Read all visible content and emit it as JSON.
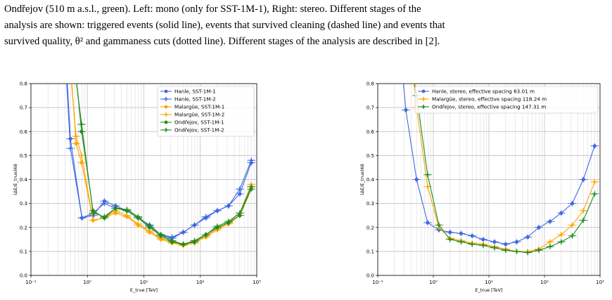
{
  "caption": {
    "line1": "Ondřejov (510 m a.s.l., green). Left: mono (only for SST-1M-1), Right: stereo. Different stages of the",
    "line2": "analysis are shown: triggered events (solid line), events that survived cleaning (dashed line) and events that",
    "line3": "survived quality, θ² and gammaness cuts (dotted line). Different stages of the analysis are described in [2]."
  },
  "colors": {
    "hanle": "#4169e1",
    "malargue": "#ffa500",
    "ondrejov": "#228b22"
  },
  "chart_data": [
    {
      "type": "line",
      "xlabel": "E_true [TeV]",
      "ylabel": "(ΔE/E_true)68",
      "xscale": "log",
      "xlim": [
        0.1,
        1000
      ],
      "ylim": [
        0.0,
        0.8
      ],
      "xticks": [
        "10⁻¹",
        "10⁰",
        "10¹",
        "10²",
        "10³"
      ],
      "yticks": [
        "0.0",
        "0.1",
        "0.2",
        "0.3",
        "0.4",
        "0.5",
        "0.6",
        "0.7",
        "0.8"
      ],
      "grid": true,
      "legend_position": "top-right",
      "series": [
        {
          "name": "Hanle, SST-1M-1",
          "color": "#4169e1",
          "marker": "circle",
          "x": [
            0.5,
            0.8,
            1.26,
            2.0,
            3.16,
            5.0,
            7.9,
            12.6,
            20,
            31.6,
            50,
            79,
            126,
            200,
            316,
            500,
            800
          ],
          "y": [
            0.57,
            0.24,
            0.25,
            0.31,
            0.29,
            0.27,
            0.24,
            0.21,
            0.17,
            0.155,
            0.18,
            0.21,
            0.24,
            0.27,
            0.29,
            0.34,
            0.47
          ]
        },
        {
          "name": "Hanle, SST-1M-2",
          "color": "#4169e1",
          "marker": "plus",
          "x": [
            0.5,
            0.8,
            1.26,
            2.0,
            3.16,
            5.0,
            7.9,
            12.6,
            20,
            31.6,
            50,
            79,
            126,
            200,
            316,
            500,
            800
          ],
          "y": [
            0.53,
            0.24,
            0.26,
            0.3,
            0.28,
            0.27,
            0.24,
            0.21,
            0.17,
            0.16,
            0.18,
            0.21,
            0.245,
            0.27,
            0.29,
            0.36,
            0.48
          ]
        },
        {
          "name": "Malargüe, SST-1M-1",
          "color": "#ffa500",
          "marker": "circle",
          "x": [
            0.63,
            0.79,
            1.26,
            2.0,
            3.16,
            5.0,
            7.9,
            12.6,
            20,
            31.6,
            50,
            79,
            126,
            200,
            316,
            500,
            800
          ],
          "y": [
            0.55,
            0.47,
            0.23,
            0.24,
            0.26,
            0.245,
            0.21,
            0.18,
            0.15,
            0.135,
            0.125,
            0.135,
            0.16,
            0.19,
            0.215,
            0.25,
            0.37
          ]
        },
        {
          "name": "Malargüe, SST-1M-2",
          "color": "#ffa500",
          "marker": "plus",
          "x": [
            0.63,
            0.79,
            1.26,
            2.0,
            3.16,
            5.0,
            7.9,
            12.6,
            20,
            31.6,
            50,
            79,
            126,
            200,
            316,
            500,
            800
          ],
          "y": [
            0.58,
            0.5,
            0.23,
            0.24,
            0.27,
            0.25,
            0.215,
            0.185,
            0.155,
            0.14,
            0.13,
            0.14,
            0.165,
            0.195,
            0.22,
            0.26,
            0.38
          ]
        },
        {
          "name": "Ondřejov, SST-1M-1",
          "color": "#228b22",
          "marker": "circle",
          "x": [
            0.79,
            1.26,
            2.0,
            3.16,
            5.0,
            7.9,
            12.6,
            20,
            31.6,
            50,
            79,
            126,
            200,
            316,
            500,
            800
          ],
          "y": [
            0.6,
            0.27,
            0.24,
            0.28,
            0.27,
            0.24,
            0.2,
            0.165,
            0.14,
            0.13,
            0.14,
            0.17,
            0.2,
            0.22,
            0.25,
            0.36
          ]
        },
        {
          "name": "Ondřejov, SST-1M-2",
          "color": "#228b22",
          "marker": "plus",
          "x": [
            0.79,
            1.26,
            2.0,
            3.16,
            5.0,
            7.9,
            12.6,
            20,
            31.6,
            50,
            79,
            126,
            200,
            316,
            500,
            800
          ],
          "y": [
            0.63,
            0.26,
            0.245,
            0.28,
            0.275,
            0.245,
            0.205,
            0.17,
            0.145,
            0.13,
            0.145,
            0.17,
            0.205,
            0.225,
            0.26,
            0.37
          ]
        }
      ]
    },
    {
      "type": "line",
      "xlabel": "E_true [TeV]",
      "ylabel": "(ΔE/E_true)68",
      "xscale": "log",
      "xlim": [
        0.1,
        1000
      ],
      "ylim": [
        0.0,
        0.8
      ],
      "xticks": [
        "10⁻¹",
        "10⁰",
        "10¹",
        "10²",
        "10³"
      ],
      "yticks": [
        "0.0",
        "0.1",
        "0.2",
        "0.3",
        "0.4",
        "0.5",
        "0.6",
        "0.7",
        "0.8"
      ],
      "grid": true,
      "legend_position": "top-right",
      "series": [
        {
          "name": "Hanle, stereo, effective spacing 63.01 m",
          "color": "#4169e1",
          "marker": "circle",
          "x": [
            0.32,
            0.5,
            0.79,
            1.26,
            2.0,
            3.16,
            5.0,
            7.9,
            12.6,
            20,
            31.6,
            50,
            79,
            126,
            200,
            316,
            500,
            800
          ],
          "y": [
            0.69,
            0.4,
            0.22,
            0.19,
            0.18,
            0.175,
            0.165,
            0.15,
            0.14,
            0.13,
            0.14,
            0.16,
            0.2,
            0.225,
            0.26,
            0.3,
            0.4,
            0.54
          ]
        },
        {
          "name": "Malargüe, stereo, effective spacing 118.24 m",
          "color": "#ffa500",
          "marker": "plus",
          "x": [
            0.5,
            0.79,
            1.26,
            2.0,
            3.16,
            5.0,
            7.9,
            12.6,
            20,
            31.6,
            50,
            79,
            126,
            200,
            316,
            500,
            800
          ],
          "y": [
            0.7,
            0.37,
            0.2,
            0.155,
            0.145,
            0.135,
            0.13,
            0.12,
            0.11,
            0.1,
            0.1,
            0.11,
            0.14,
            0.17,
            0.21,
            0.27,
            0.39
          ]
        },
        {
          "name": "Ondřejov, stereo, effective spacing 147.31 m",
          "color": "#228b22",
          "marker": "plus",
          "x": [
            0.5,
            0.79,
            1.26,
            2.0,
            3.16,
            5.0,
            7.9,
            12.6,
            20,
            31.6,
            50,
            79,
            126,
            200,
            316,
            500,
            800
          ],
          "y": [
            0.75,
            0.42,
            0.21,
            0.15,
            0.14,
            0.13,
            0.125,
            0.115,
            0.105,
            0.1,
            0.095,
            0.105,
            0.12,
            0.14,
            0.165,
            0.23,
            0.34
          ]
        }
      ]
    }
  ]
}
